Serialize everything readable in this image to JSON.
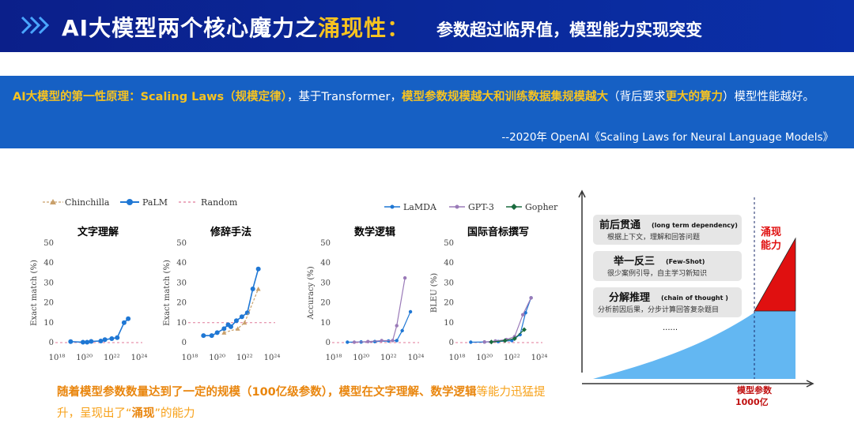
{
  "header": {
    "title_prefix": "AI大模型两个核心魔力之",
    "title_highlight": "涌现性",
    "title_colon": "：",
    "subtitle": "参数超过临界值，模型能力实现突变"
  },
  "intro": {
    "seg1": "AI大模型的第一性原理：Scaling Laws（规模定律）",
    "seg2": "，基于Transformer，",
    "seg3": "模型参数规模越大和训练数据集规模越大",
    "seg4": "（背后要求",
    "seg5": "更大的算力",
    "seg6": "）模型性能越好。",
    "citation": "--2020年 OpenAI《Scaling Laws for Neural Language Models》"
  },
  "legend_left": {
    "chinchilla": "Chinchilla",
    "palm": "PaLM",
    "random": "Random"
  },
  "legend_right": {
    "lamda": "LaMDA",
    "gpt3": "GPT-3",
    "gopher": "Gopher"
  },
  "colors": {
    "chinchilla": "#c9a06b",
    "palm": "#1f77d4",
    "random": "#e07a9a",
    "lamda": "#1f77d4",
    "gpt3": "#9a7ab8",
    "gopher": "#1a6b3e",
    "area": "#63b7f2",
    "emergent": "#e01010",
    "accent": "#f7c320",
    "header": "#0b1f8a",
    "band": "#1660c4"
  },
  "chart_data": [
    {
      "type": "line",
      "title": "文字理解",
      "ylabel": "Exact match (%)",
      "ylim": [
        0,
        50
      ],
      "xlim": [
        18,
        24
      ],
      "xticks": [
        "10¹⁸",
        "10²⁰",
        "10²²",
        "10²⁴"
      ],
      "yticks": [
        "0",
        "10",
        "20",
        "30",
        "40",
        "50"
      ],
      "series": [
        {
          "name": "PaLM",
          "x": [
            19.0,
            19.9,
            20.2,
            20.5,
            21.2,
            21.5,
            22.0,
            22.4,
            22.9,
            23.2
          ],
          "y": [
            0.5,
            0.2,
            0.2,
            0.6,
            0.8,
            1.5,
            2.0,
            2.5,
            10.0,
            12.0
          ]
        }
      ],
      "random": 0
    },
    {
      "type": "line",
      "title": "修辞手法",
      "ylabel": "Exact match (%)",
      "ylim": [
        0,
        50
      ],
      "xlim": [
        18,
        24
      ],
      "xticks": [
        "10¹⁸",
        "10²⁰",
        "10²²",
        "10²⁴"
      ],
      "yticks": [
        "0",
        "10",
        "20",
        "30",
        "40",
        "50"
      ],
      "series": [
        {
          "name": "PaLM",
          "x": [
            19.0,
            19.6,
            20.0,
            20.5,
            20.8,
            21.0,
            21.4,
            21.8,
            22.2,
            22.6,
            23.0
          ],
          "y": [
            3.5,
            3.5,
            5.0,
            7.0,
            9.0,
            8.0,
            11.0,
            13.0,
            15.0,
            27.0,
            37.0
          ]
        },
        {
          "name": "Chinchilla",
          "x": [
            20.5,
            21.5,
            22.0,
            23.0
          ],
          "y": [
            5.0,
            7.0,
            10.0,
            27.0
          ]
        }
      ],
      "random": 10
    },
    {
      "type": "line",
      "title": "数学逻辑",
      "ylabel": "Accuracy (%)",
      "ylim": [
        0,
        50
      ],
      "xlim": [
        18,
        24
      ],
      "xticks": [
        "10¹⁸",
        "10²⁰",
        "10²²",
        "10²⁴"
      ],
      "yticks": [
        "0",
        "10",
        "20",
        "30",
        "40",
        "50"
      ],
      "series": [
        {
          "name": "LaMDA",
          "x": [
            19.0,
            20.0,
            21.0,
            22.0,
            22.6,
            23.0,
            23.6
          ],
          "y": [
            0.2,
            0.3,
            0.5,
            0.8,
            1.0,
            6.0,
            15.5
          ]
        },
        {
          "name": "GPT-3",
          "x": [
            19.5,
            20.5,
            21.5,
            22.3,
            22.6,
            23.2
          ],
          "y": [
            0.2,
            0.5,
            1.0,
            1.0,
            8.5,
            32.5
          ]
        }
      ],
      "random": 0
    },
    {
      "type": "line",
      "title": "国际音标撰写",
      "ylabel": "BLEU (%)",
      "ylim": [
        0,
        50
      ],
      "xlim": [
        18,
        24
      ],
      "xticks": [
        "10¹⁸",
        "10²⁰",
        "10²²",
        "10²⁴"
      ],
      "yticks": [
        "0",
        "10",
        "20",
        "30",
        "40",
        "50"
      ],
      "series": [
        {
          "name": "LaMDA",
          "x": [
            19.0,
            20.0,
            21.0,
            22.0,
            22.6,
            23.0,
            23.4
          ],
          "y": [
            0.2,
            0.3,
            0.5,
            1.0,
            4.0,
            15.0,
            22.5
          ]
        },
        {
          "name": "GPT-3",
          "x": [
            20.0,
            20.8,
            21.6,
            22.2,
            22.8,
            23.4
          ],
          "y": [
            0.3,
            0.8,
            1.5,
            3.0,
            14.0,
            22.5
          ]
        },
        {
          "name": "Gopher",
          "x": [
            20.5,
            21.5,
            22.2,
            22.9
          ],
          "y": [
            0.3,
            1.0,
            2.0,
            6.5
          ]
        }
      ],
      "random": 0
    }
  ],
  "bottom": {
    "s1": "随着模型参数数量达到了一定的规模（100亿级参数），模型在",
    "s2": "文字理解、数学逻辑",
    "s3": "等能力迅猛提升，呈现出了“",
    "s4": "涌现",
    "s5": "”的能力"
  },
  "right": {
    "box1_title": "前后贯通",
    "box1_en": "(long term dependency)",
    "box1_sub": "根据上下文，理解和回答问题",
    "box2_title": "举一反三",
    "box2_en": "(Few-Shot)",
    "box2_sub": "很少案例引导，自主学习新知识",
    "box3_title": "分解推理",
    "box3_en": "(chain of thought )",
    "box3_sub": "分析前因后果，分步计算回答复杂题目",
    "dots": "......",
    "emergent_label1": "涌现",
    "emergent_label2": "能力",
    "xlabel1": "模型参数",
    "xlabel2": "1000亿"
  }
}
